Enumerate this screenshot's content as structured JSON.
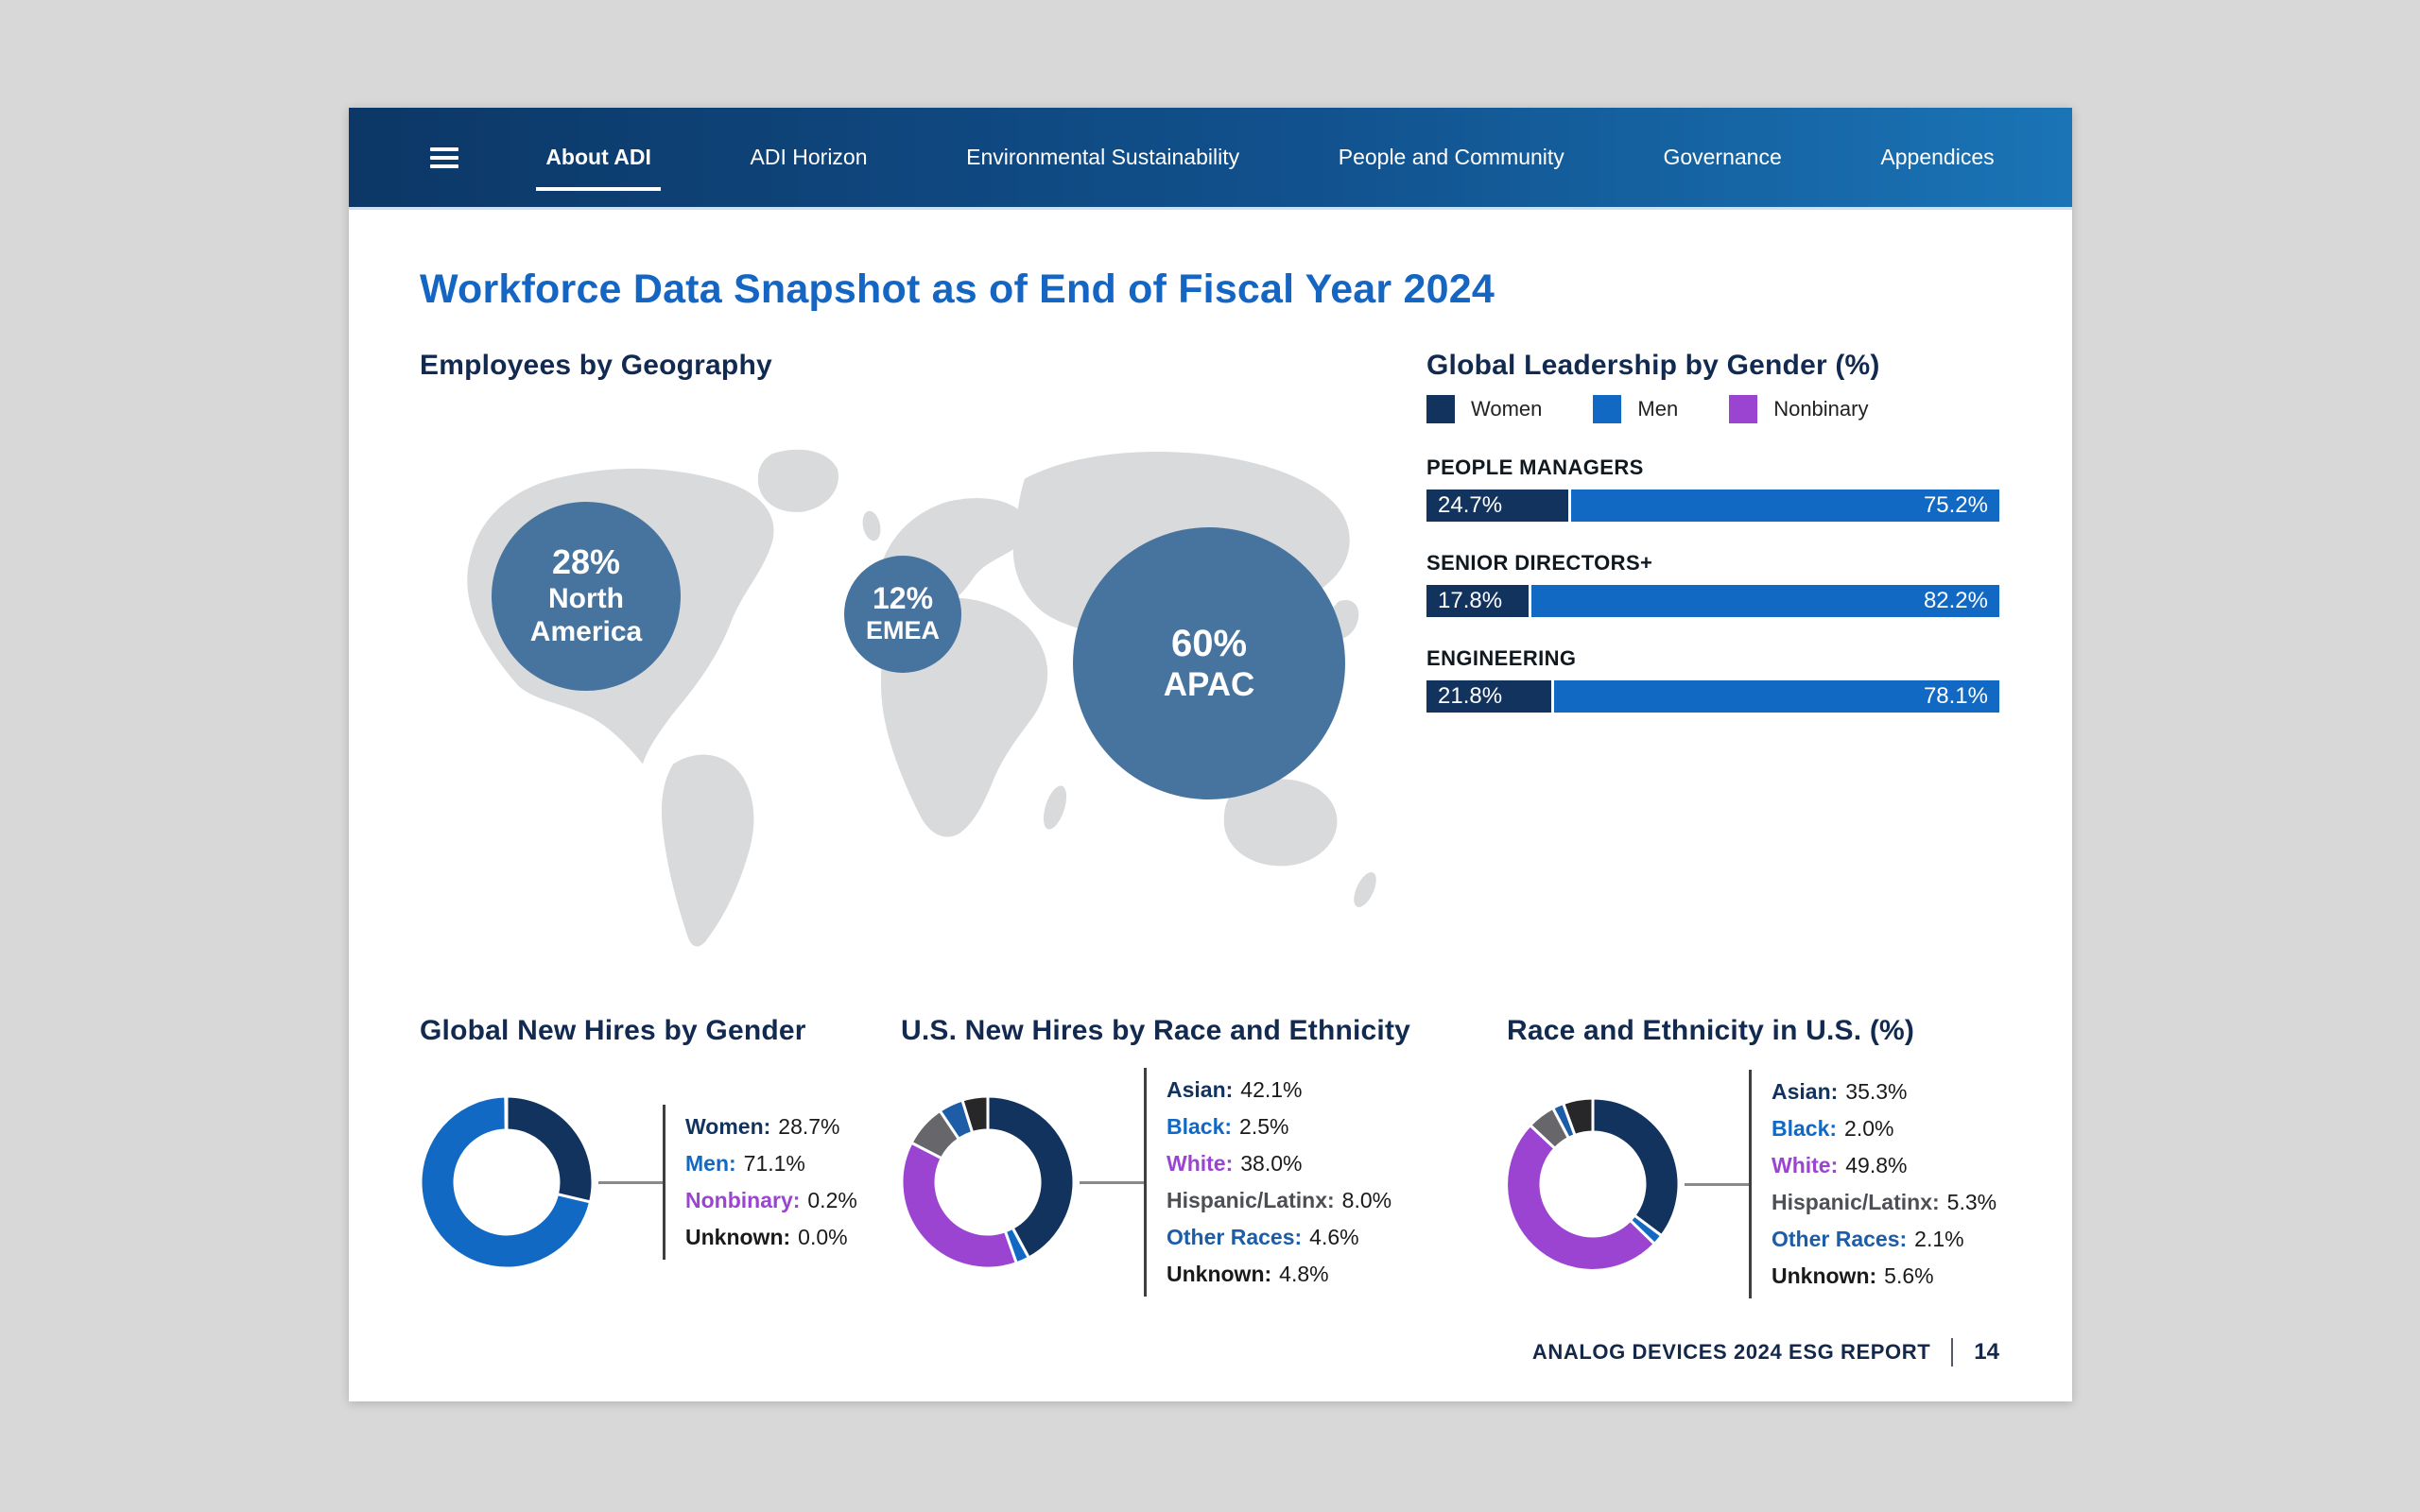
{
  "nav": {
    "items": [
      {
        "label": "About ADI",
        "active": true
      },
      {
        "label": "ADI Horizon",
        "active": false
      },
      {
        "label": "Environmental Sustainability",
        "active": false
      },
      {
        "label": "People and Community",
        "active": false
      },
      {
        "label": "Governance",
        "active": false
      },
      {
        "label": "Appendices",
        "active": false
      }
    ]
  },
  "page": {
    "title": "Workforce Data Snapshot as of End of Fiscal Year 2024",
    "footer": {
      "report": "ANALOG DEVICES 2024 ESG REPORT",
      "page_number": "14"
    }
  },
  "colors": {
    "title_blue": "#1565c3",
    "heading_navy": "#122a50",
    "navy": "#13335f",
    "blue": "#1269c4",
    "purple": "#9b44d1",
    "gray": "#66666b",
    "other_blue": "#1d5ca6",
    "black": "#27272a",
    "bubble_blue": "#46749f",
    "map_gray": "#d9dadb"
  },
  "chart_data": [
    {
      "id": "geo",
      "type": "bubble-map",
      "title": "Employees by Geography",
      "bubbles": [
        {
          "region": "North America",
          "value": 28,
          "value_label": "28%"
        },
        {
          "region": "EMEA",
          "value": 12,
          "value_label": "12%"
        },
        {
          "region": "APAC",
          "value": 60,
          "value_label": "60%"
        }
      ]
    },
    {
      "id": "leadership",
      "type": "bar",
      "title": "Global Leadership by Gender (%)",
      "legend": [
        {
          "label": "Women",
          "color": "#13335f"
        },
        {
          "label": "Men",
          "color": "#1269c4"
        },
        {
          "label": "Nonbinary",
          "color": "#9b44d1"
        }
      ],
      "categories": [
        "PEOPLE MANAGERS",
        "SENIOR DIRECTORS+",
        "ENGINEERING"
      ],
      "series": [
        {
          "name": "Women",
          "values": [
            24.7,
            17.8,
            21.8
          ]
        },
        {
          "name": "Men",
          "values": [
            75.2,
            82.2,
            78.1
          ]
        }
      ],
      "value_suffix": "%"
    },
    {
      "id": "new-hires-gender",
      "type": "pie",
      "title": "Global New Hires by Gender",
      "segments": [
        {
          "label": "Women",
          "value": 28.7,
          "color": "#13335f"
        },
        {
          "label": "Men",
          "value": 71.1,
          "color": "#1269c4"
        },
        {
          "label": "Nonbinary",
          "value": 0.2,
          "color": "#9b44d1"
        },
        {
          "label": "Unknown",
          "value": 0.0,
          "color": "#27272a",
          "label_color": "#1a1a1a"
        }
      ]
    },
    {
      "id": "us-new-hires-race",
      "type": "pie",
      "title": "U.S. New Hires by Race and Ethnicity",
      "segments": [
        {
          "label": "Asian",
          "value": 42.1,
          "color": "#13335f"
        },
        {
          "label": "Black",
          "value": 2.5,
          "color": "#1269c4"
        },
        {
          "label": "White",
          "value": 38.0,
          "color": "#9b44d1"
        },
        {
          "label": "Hispanic/Latinx",
          "value": 8.0,
          "color": "#66666b",
          "label_color": "#4d4f55"
        },
        {
          "label": "Other Races",
          "value": 4.6,
          "color": "#1d5ca6"
        },
        {
          "label": "Unknown",
          "value": 4.8,
          "color": "#27272a",
          "label_color": "#1a1a1a"
        }
      ]
    },
    {
      "id": "us-race",
      "type": "pie",
      "title": "Race and Ethnicity in U.S. (%)",
      "segments": [
        {
          "label": "Asian",
          "value": 35.3,
          "color": "#13335f"
        },
        {
          "label": "Black",
          "value": 2.0,
          "color": "#1269c4"
        },
        {
          "label": "White",
          "value": 49.8,
          "color": "#9b44d1"
        },
        {
          "label": "Hispanic/Latinx",
          "value": 5.3,
          "color": "#66666b",
          "label_color": "#4d4f55"
        },
        {
          "label": "Other Races",
          "value": 2.1,
          "color": "#1d5ca6"
        },
        {
          "label": "Unknown",
          "value": 5.6,
          "color": "#27272a",
          "label_color": "#1a1a1a"
        }
      ]
    }
  ]
}
